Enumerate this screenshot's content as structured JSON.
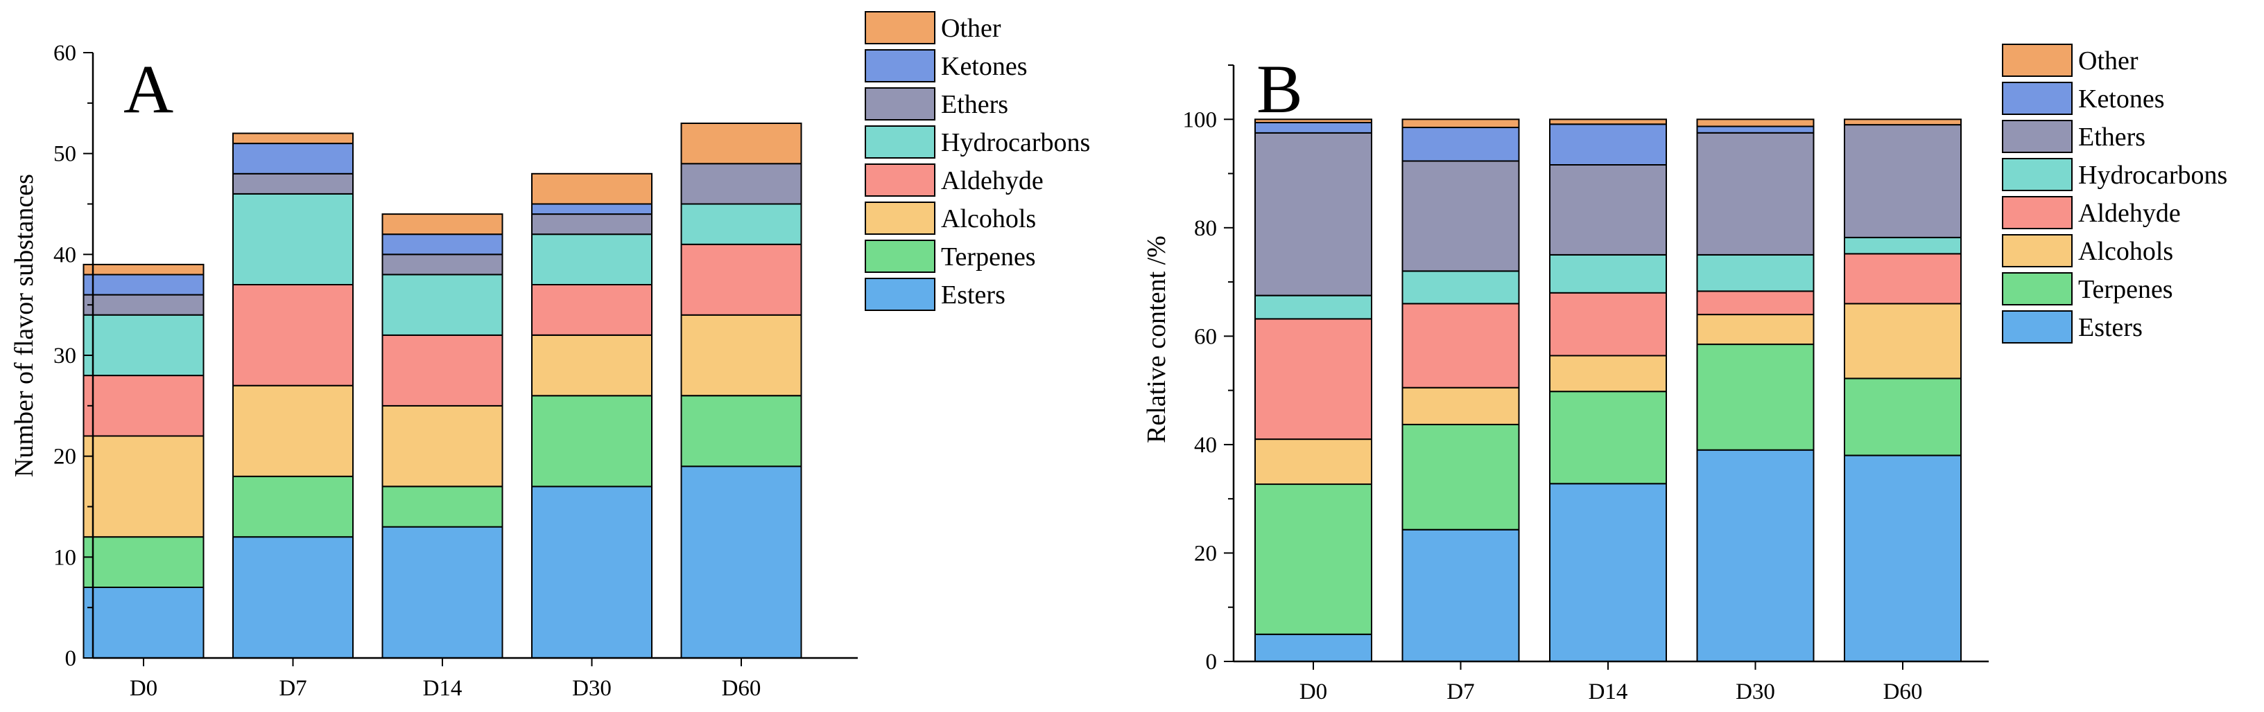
{
  "colors": {
    "Esters": "#62aeeb",
    "Terpenes": "#74dc8d",
    "Alcohols": "#f8ca7c",
    "Aldehyde": "#f8928a",
    "Hydrocarbons": "#7bd9cf",
    "Ethers": "#9395b3",
    "Ketones": "#7597e2",
    "Other": "#f1a567"
  },
  "legend_order": [
    "Other",
    "Ketones",
    "Ethers",
    "Hydrocarbons",
    "Aldehyde",
    "Alcohols",
    "Terpenes",
    "Esters"
  ],
  "chart_data": [
    {
      "panel": "A",
      "type": "bar",
      "stacked": true,
      "categories": [
        "D0",
        "D7",
        "D14",
        "D30",
        "D60"
      ],
      "xlabel": "",
      "ylabel": "Number of flavor substances",
      "ylim": [
        0,
        60
      ],
      "yticks": [
        0,
        10,
        20,
        30,
        40,
        50,
        60
      ],
      "ytick_labels": [
        "0",
        "10",
        "20",
        "30",
        "40",
        "50",
        "60"
      ],
      "series": [
        {
          "name": "Esters",
          "values": [
            7,
            12,
            13,
            17,
            19
          ]
        },
        {
          "name": "Terpenes",
          "values": [
            5,
            6,
            4,
            9,
            7
          ]
        },
        {
          "name": "Alcohols",
          "values": [
            10,
            9,
            8,
            6,
            8
          ]
        },
        {
          "name": "Aldehyde",
          "values": [
            6,
            10,
            7,
            5,
            7
          ]
        },
        {
          "name": "Hydrocarbons",
          "values": [
            6,
            9,
            6,
            5,
            4
          ]
        },
        {
          "name": "Ethers",
          "values": [
            2,
            2,
            2,
            2,
            4
          ]
        },
        {
          "name": "Ketones",
          "values": [
            2,
            3,
            2,
            1,
            0
          ]
        },
        {
          "name": "Other",
          "values": [
            1,
            1,
            2,
            3,
            4
          ]
        }
      ],
      "legend_position": "top-right"
    },
    {
      "panel": "B",
      "type": "bar",
      "stacked": true,
      "categories": [
        "D0",
        "D7",
        "D14",
        "D30",
        "D60"
      ],
      "xlabel": "",
      "ylabel": "Relative content /%",
      "ylim": [
        0,
        110
      ],
      "yticks": [
        0,
        20,
        40,
        60,
        80,
        100
      ],
      "ytick_labels": [
        "0",
        "20",
        "40",
        "60",
        "80",
        "100"
      ],
      "series": [
        {
          "name": "Esters",
          "values": [
            5,
            24.3,
            32.8,
            39,
            38
          ]
        },
        {
          "name": "Terpenes",
          "values": [
            27.7,
            19.4,
            17,
            19.5,
            14.2
          ]
        },
        {
          "name": "Alcohols",
          "values": [
            8.3,
            6.8,
            6.6,
            5.5,
            13.8
          ]
        },
        {
          "name": "Aldehyde",
          "values": [
            22.2,
            15.5,
            11.6,
            4.3,
            9.2
          ]
        },
        {
          "name": "Hydrocarbons",
          "values": [
            4.3,
            6,
            7,
            6.7,
            3
          ]
        },
        {
          "name": "Ethers",
          "values": [
            30,
            20.3,
            16.6,
            22.5,
            20.8
          ]
        },
        {
          "name": "Ketones",
          "values": [
            1.9,
            6.2,
            7.5,
            1.2,
            0
          ]
        },
        {
          "name": "Other",
          "values": [
            0.6,
            1.5,
            0.9,
            1.3,
            1
          ]
        }
      ],
      "legend_position": "top-right"
    }
  ]
}
